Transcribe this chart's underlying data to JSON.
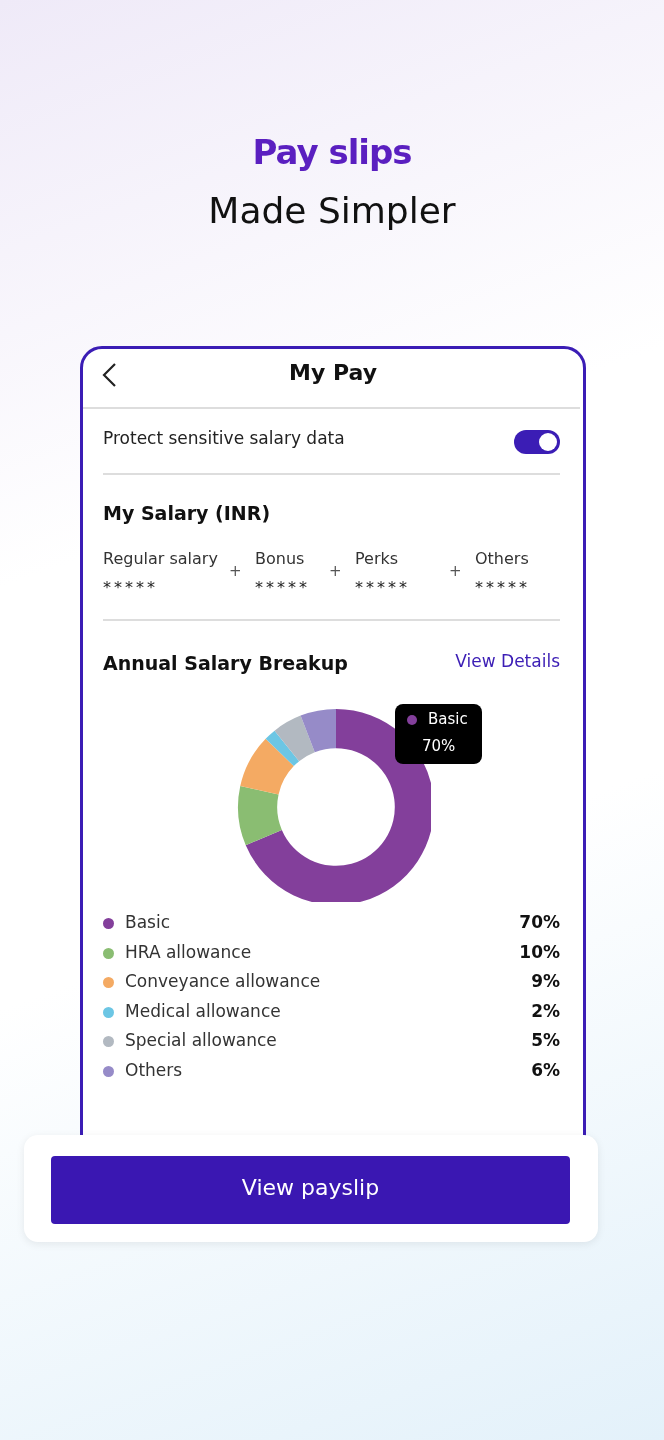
{
  "chart_data": {
    "type": "donut",
    "title": "Annual Salary Breakup",
    "categories": [
      "Basic",
      "HRA allowance",
      "Conveyance allowance",
      "Medical allowance",
      "Special allowance",
      "Others"
    ],
    "values": [
      70,
      10,
      9,
      2,
      5,
      6
    ],
    "value_labels": [
      "70%",
      "10%",
      "9%",
      "2%",
      "5%",
      "6%"
    ],
    "colors": [
      "#833f9b",
      "#8abd72",
      "#f4aa63",
      "#6cc6e4",
      "#b2b9c1",
      "#968bc8"
    ],
    "legend": "bottom",
    "annotations": [
      "Pay slips",
      "Made Simpler",
      "My Pay",
      "Protect sensitive salary data",
      "My Salary (INR)",
      "Regular salary",
      "Bonus",
      "Perks",
      "Others",
      "*****",
      "+",
      "View Details",
      "View payslip"
    ]
  }
}
